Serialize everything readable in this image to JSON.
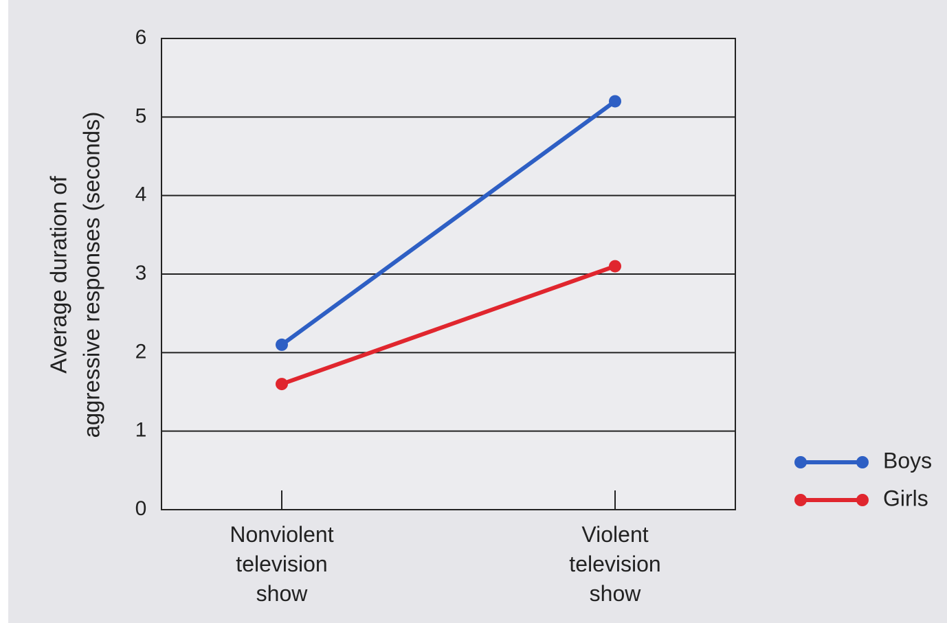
{
  "chart_data": {
    "type": "line",
    "y_label": [
      "Average duration of",
      "aggressive responses (seconds)"
    ],
    "categories": [
      "Nonviolent television show",
      "Violent television show"
    ],
    "series": [
      {
        "name": "Boys",
        "color": "#2e5fc4",
        "values": [
          2.1,
          5.2
        ]
      },
      {
        "name": "Girls",
        "color": "#e0262e",
        "values": [
          1.6,
          3.1
        ]
      }
    ],
    "ylim": [
      0,
      6
    ],
    "yticks": [
      0,
      1,
      2,
      3,
      4,
      5,
      6
    ],
    "grid": true,
    "legend": "lower right"
  }
}
